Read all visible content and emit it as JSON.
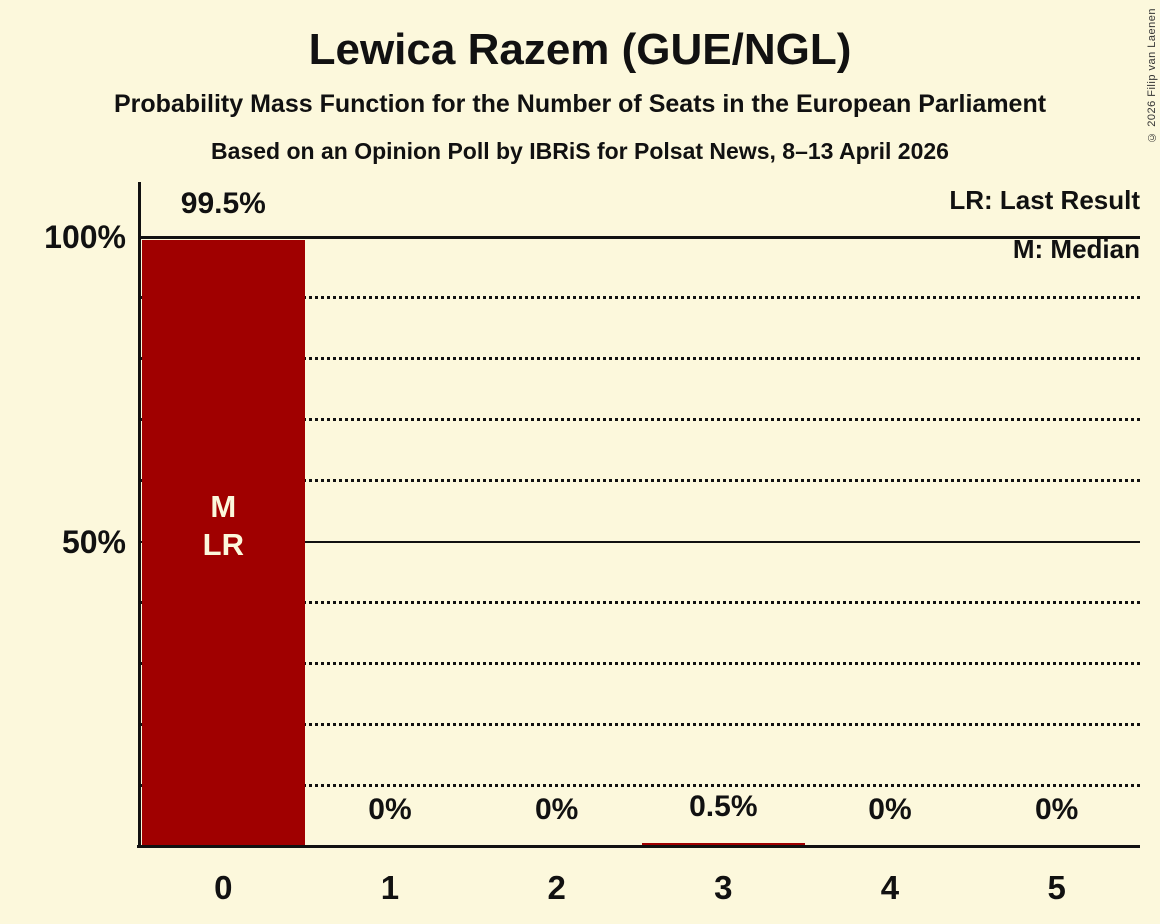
{
  "page": {
    "title": "Lewica Razem (GUE/NGL)",
    "subtitle": "Probability Mass Function for the Number of Seats in the European Parliament",
    "poll_info": "Based on an Opinion Poll by IBRiS for Polsat News, 8–13 April 2026",
    "copyright": "© 2026 Filip van Laenen"
  },
  "legend": {
    "last_result": "LR: Last Result",
    "median": "M: Median"
  },
  "colors": {
    "background": "#FCF8DC",
    "bar": "#A00000",
    "text": "#111111",
    "bar_text": "#FCF8DC"
  },
  "chart_data": {
    "type": "bar",
    "title": "Lewica Razem (GUE/NGL)",
    "categories": [
      "0",
      "1",
      "2",
      "3",
      "4",
      "5"
    ],
    "values": [
      99.5,
      0,
      0,
      0.5,
      0,
      0
    ],
    "value_labels": [
      "99.5%",
      "0%",
      "0%",
      "0.5%",
      "0%",
      "0%"
    ],
    "ylim": [
      0,
      100
    ],
    "y_axis": {
      "tick_labels": [
        {
          "text": "100%",
          "value": 100
        },
        {
          "text": "50%",
          "value": 50
        }
      ]
    },
    "gridlines": {
      "solid": [
        100,
        50
      ],
      "dotted": [
        90,
        80,
        70,
        60,
        40,
        30,
        20,
        10
      ]
    },
    "annotations": [
      {
        "category": "0",
        "lines": [
          "M",
          "LR"
        ]
      }
    ],
    "legend_position": "top-right",
    "grid": "horizontal-dotted"
  }
}
